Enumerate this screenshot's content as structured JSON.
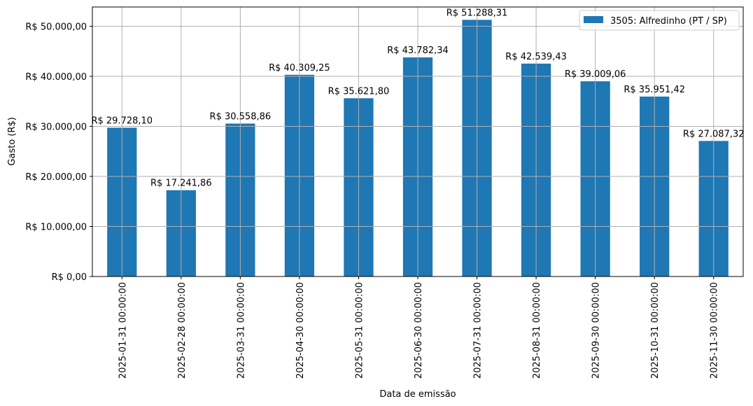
{
  "chart_data": {
    "type": "bar",
    "title": "",
    "xlabel": "Data de emissão",
    "ylabel": "Gasto (R$)",
    "categories": [
      "2025-01-31 00:00:00",
      "2025-02-28 00:00:00",
      "2025-03-31 00:00:00",
      "2025-04-30 00:00:00",
      "2025-05-31 00:00:00",
      "2025-06-30 00:00:00",
      "2025-07-31 00:00:00",
      "2025-08-31 00:00:00",
      "2025-09-30 00:00:00",
      "2025-10-31 00:00:00",
      "2025-11-30 00:00:00"
    ],
    "series": [
      {
        "name": "3505: Alfredinho (PT / SP)",
        "color": "#1f77b4",
        "values": [
          29728.1,
          17241.86,
          30558.86,
          40309.25,
          35621.8,
          43782.34,
          51288.31,
          42539.43,
          39009.06,
          35951.42,
          27087.32
        ],
        "labels": [
          "R$ 29.728,10",
          "R$ 17.241,86",
          "R$ 30.558,86",
          "R$ 40.309,25",
          "R$ 35.621,80",
          "R$ 43.782,34",
          "R$ 51.288,31",
          "R$ 42.539,43",
          "R$ 39.009,06",
          "R$ 35.951,42",
          "R$ 27.087,32"
        ]
      }
    ],
    "yticks": [
      0,
      10000,
      20000,
      30000,
      40000,
      50000
    ],
    "ytick_labels": [
      "R$ 0,00",
      "R$ 10.000,00",
      "R$ 20.000,00",
      "R$ 30.000,00",
      "R$ 40.000,00",
      "R$ 50.000,00"
    ],
    "ylim": [
      0,
      53852
    ],
    "grid": true,
    "legend_position": "upper right"
  }
}
